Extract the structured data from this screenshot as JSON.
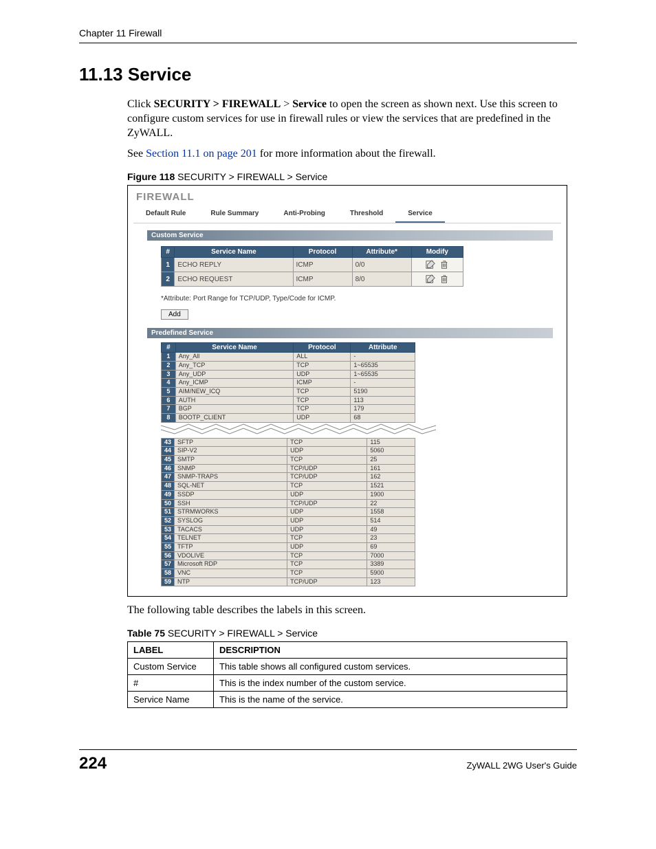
{
  "header": {
    "chapter_line": "Chapter 11 Firewall"
  },
  "section": {
    "number_title": "11.13  Service"
  },
  "para1": {
    "t1": "Click ",
    "b1": "SECURITY > FIREWALL",
    "t2": " > ",
    "b2": "Service",
    "t3": " to open the screen as shown next. Use this screen to configure custom services for use in firewall rules or view the services that are predefined in the ZyWALL."
  },
  "para2": {
    "t1": "See ",
    "link": "Section 11.1 on page 201",
    "t2": " for more information about the firewall."
  },
  "figure_caption": {
    "label": "Figure 118",
    "text": "   SECURITY > FIREWALL > Service"
  },
  "screenshot": {
    "title": "FIREWALL",
    "tabs": [
      "Default Rule",
      "Rule Summary",
      "Anti-Probing",
      "Threshold",
      "Service"
    ],
    "active_tab_index": 4,
    "custom_section_label": "Custom Service",
    "custom_headers": [
      "#",
      "Service Name",
      "Protocol",
      "Attribute*",
      "Modify"
    ],
    "custom_rows": [
      {
        "n": "1",
        "name": "ECHO REPLY",
        "proto": "ICMP",
        "attr": "0/0"
      },
      {
        "n": "2",
        "name": "ECHO REQUEST",
        "proto": "ICMP",
        "attr": "8/0"
      }
    ],
    "attr_note": "*Attribute: Port Range for TCP/UDP, Type/Code for ICMP.",
    "add_button": "Add",
    "predef_section_label": "Predefined Service",
    "predef_headers": [
      "#",
      "Service Name",
      "Protocol",
      "Attribute"
    ],
    "predef_rows_top": [
      {
        "n": "1",
        "name": "Any_All",
        "proto": "ALL",
        "attr": "-"
      },
      {
        "n": "2",
        "name": "Any_TCP",
        "proto": "TCP",
        "attr": "1~65535"
      },
      {
        "n": "3",
        "name": "Any_UDP",
        "proto": "UDP",
        "attr": "1~65535"
      },
      {
        "n": "4",
        "name": "Any_ICMP",
        "proto": "ICMP",
        "attr": "-"
      },
      {
        "n": "5",
        "name": "AIM/NEW_ICQ",
        "proto": "TCP",
        "attr": "5190"
      },
      {
        "n": "6",
        "name": "AUTH",
        "proto": "TCP",
        "attr": "113"
      },
      {
        "n": "7",
        "name": "BGP",
        "proto": "TCP",
        "attr": "179"
      },
      {
        "n": "8",
        "name": "BOOTP_CLIENT",
        "proto": "UDP",
        "attr": "68"
      }
    ],
    "predef_rows_bottom": [
      {
        "n": "43",
        "name": "SFTP",
        "proto": "TCP",
        "attr": "115"
      },
      {
        "n": "44",
        "name": "SIP-V2",
        "proto": "UDP",
        "attr": "5060"
      },
      {
        "n": "45",
        "name": "SMTP",
        "proto": "TCP",
        "attr": "25"
      },
      {
        "n": "46",
        "name": "SNMP",
        "proto": "TCP/UDP",
        "attr": "161"
      },
      {
        "n": "47",
        "name": "SNMP-TRAPS",
        "proto": "TCP/UDP",
        "attr": "162"
      },
      {
        "n": "48",
        "name": "SQL-NET",
        "proto": "TCP",
        "attr": "1521"
      },
      {
        "n": "49",
        "name": "SSDP",
        "proto": "UDP",
        "attr": "1900"
      },
      {
        "n": "50",
        "name": "SSH",
        "proto": "TCP/UDP",
        "attr": "22"
      },
      {
        "n": "51",
        "name": "STRMWORKS",
        "proto": "UDP",
        "attr": "1558"
      },
      {
        "n": "52",
        "name": "SYSLOG",
        "proto": "UDP",
        "attr": "514"
      },
      {
        "n": "53",
        "name": "TACACS",
        "proto": "UDP",
        "attr": "49"
      },
      {
        "n": "54",
        "name": "TELNET",
        "proto": "TCP",
        "attr": "23"
      },
      {
        "n": "55",
        "name": "TFTP",
        "proto": "UDP",
        "attr": "69"
      },
      {
        "n": "56",
        "name": "VDOLIVE",
        "proto": "TCP",
        "attr": "7000"
      },
      {
        "n": "57",
        "name": "Microsoft RDP",
        "proto": "TCP",
        "attr": "3389"
      },
      {
        "n": "58",
        "name": "VNC",
        "proto": "TCP",
        "attr": "5900"
      },
      {
        "n": "59",
        "name": "NTP",
        "proto": "TCP/UDP",
        "attr": "123"
      }
    ]
  },
  "after_fig_para": "The following table describes the labels in this screen.",
  "table_caption": {
    "label": "Table 75",
    "text": "   SECURITY > FIREWALL > Service"
  },
  "doc_table": {
    "headers": [
      "LABEL",
      "DESCRIPTION"
    ],
    "rows": [
      {
        "label": "Custom Service",
        "desc": "This table shows all configured custom services."
      },
      {
        "label": "#",
        "desc": "This is the index number of the custom service."
      },
      {
        "label": "Service Name",
        "desc": "This is the name of the service."
      }
    ]
  },
  "footer": {
    "page_num": "224",
    "guide": "ZyWALL 2WG User's Guide"
  }
}
